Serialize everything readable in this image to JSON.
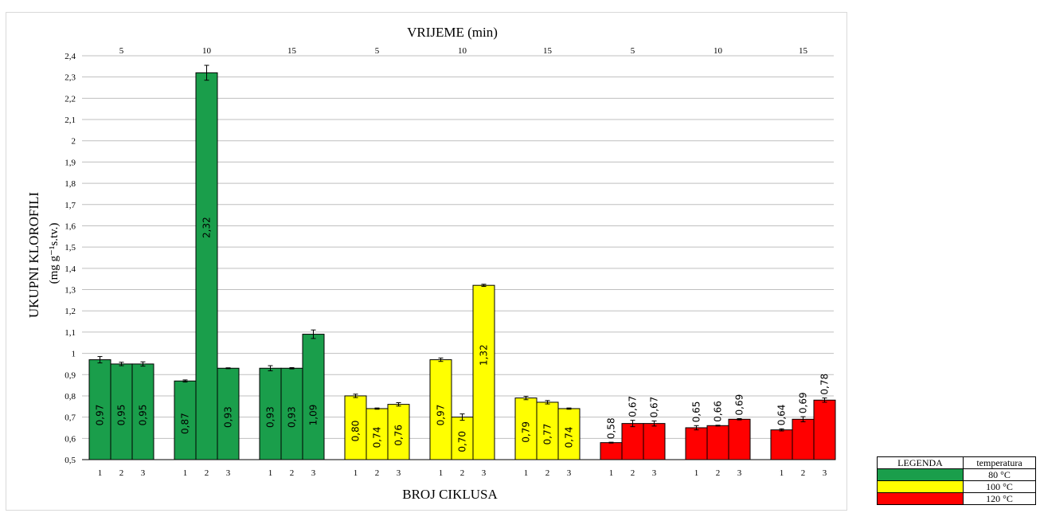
{
  "chart_data": {
    "type": "bar",
    "title": "VRIJEME (min)",
    "xlabel": "BROJ CIKLUSA",
    "ylabel_line1": "UKUPNI KLOROFILI",
    "ylabel_line2": "(mg g⁻¹s.tv.)",
    "ylim": [
      0.5,
      2.4
    ],
    "yticks": [
      "0,5",
      "0,6",
      "0,7",
      "0,8",
      "0,9",
      "1",
      "1,1",
      "1,2",
      "1,3",
      "1,4",
      "1,5",
      "1,6",
      "1,7",
      "1,8",
      "1,9",
      "2",
      "2,1",
      "2,2",
      "2,3",
      "2,4"
    ],
    "grid": true,
    "groups": [
      {
        "time": "5",
        "temperature": "80 °C",
        "categories": [
          "1",
          "2",
          "3"
        ],
        "values": [
          0.97,
          0.95,
          0.95
        ],
        "labels": [
          "0,97",
          "0,95",
          "0,95"
        ],
        "errors": [
          0.015,
          0.008,
          0.01
        ]
      },
      {
        "time": "10",
        "temperature": "80 °C",
        "categories": [
          "1",
          "2",
          "3"
        ],
        "values": [
          0.87,
          2.32,
          0.93
        ],
        "labels": [
          "0,87",
          "2,32",
          "0,93"
        ],
        "errors": [
          0.005,
          0.035,
          0.002
        ]
      },
      {
        "time": "15",
        "temperature": "80 °C",
        "categories": [
          "1",
          "2",
          "3"
        ],
        "values": [
          0.93,
          0.93,
          1.09
        ],
        "labels": [
          "0,93",
          "0,93",
          "1,09"
        ],
        "errors": [
          0.012,
          0.003,
          0.02
        ]
      },
      {
        "time": "5",
        "temperature": "100 °C",
        "categories": [
          "1",
          "2",
          "3"
        ],
        "values": [
          0.8,
          0.74,
          0.76
        ],
        "labels": [
          "0,80",
          "0,74",
          "0,76"
        ],
        "errors": [
          0.008,
          0.003,
          0.008
        ]
      },
      {
        "time": "10",
        "temperature": "100 °C",
        "categories": [
          "1",
          "2",
          "3"
        ],
        "values": [
          0.97,
          0.7,
          1.32
        ],
        "labels": [
          "0,97",
          "0,70",
          "1,32"
        ],
        "errors": [
          0.008,
          0.015,
          0.005
        ]
      },
      {
        "time": "15",
        "temperature": "100 °C",
        "categories": [
          "1",
          "2",
          "3"
        ],
        "values": [
          0.79,
          0.77,
          0.74
        ],
        "labels": [
          "0,79",
          "0,77",
          "0,74"
        ],
        "errors": [
          0.008,
          0.008,
          0.003
        ]
      },
      {
        "time": "5",
        "temperature": "120 °C",
        "categories": [
          "1",
          "2",
          "3"
        ],
        "values": [
          0.58,
          0.67,
          0.67
        ],
        "labels": [
          "0,58",
          "0,67",
          "0,67"
        ],
        "errors": [
          0.002,
          0.015,
          0.012
        ]
      },
      {
        "time": "10",
        "temperature": "120 °C",
        "categories": [
          "1",
          "2",
          "3"
        ],
        "values": [
          0.65,
          0.66,
          0.69
        ],
        "labels": [
          "0,65",
          "0,66",
          "0,69"
        ],
        "errors": [
          0.01,
          0.002,
          0.003
        ]
      },
      {
        "time": "15",
        "temperature": "120 °C",
        "categories": [
          "1",
          "2",
          "3"
        ],
        "values": [
          0.64,
          0.69,
          0.78
        ],
        "labels": [
          "0,64",
          "0,69",
          "0,78"
        ],
        "errors": [
          0.005,
          0.012,
          0.01
        ]
      }
    ],
    "colors": {
      "80 °C": "#1a9e4b",
      "100 °C": "#ffff00",
      "120 °C": "#ff0000"
    }
  },
  "legend": {
    "header_left": "LEGENDA",
    "header_right": "temperatura",
    "rows": [
      {
        "label": "80 °C",
        "color": "#1a9e4b"
      },
      {
        "label": "100 °C",
        "color": "#ffff00"
      },
      {
        "label": "120 °C",
        "color": "#ff0000"
      }
    ]
  }
}
